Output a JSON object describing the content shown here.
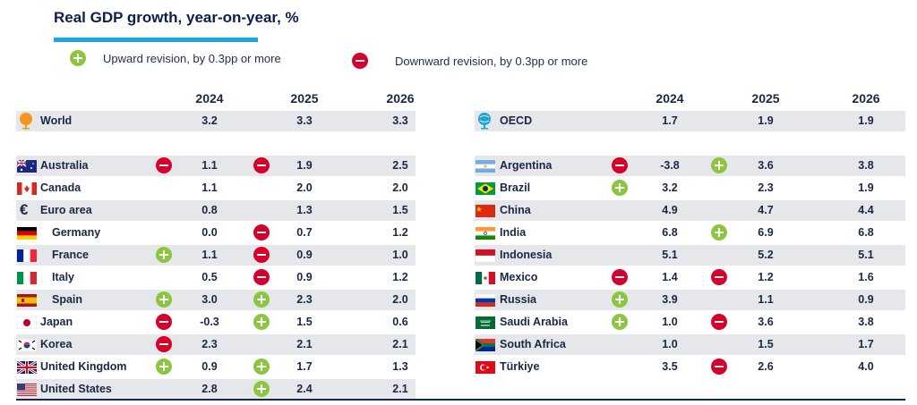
{
  "chart_data": {
    "type": "table",
    "title": "Real GDP growth, year-on-year, %",
    "legend": [
      {
        "key": "up",
        "label": "Upward revision, by 0.3pp or more"
      },
      {
        "key": "down",
        "label": "Downward revision, by 0.3pp or more"
      }
    ],
    "years": [
      "2024",
      "2025",
      "2026"
    ],
    "left": {
      "aggregate": {
        "name": "World",
        "values": [
          "3.2",
          "3.3",
          "3.3"
        ],
        "revisions": [
          null,
          null,
          null
        ]
      },
      "countries": [
        {
          "name": "Australia",
          "values": [
            "1.1",
            "1.9",
            "2.5"
          ],
          "revisions": [
            "down",
            "down",
            null
          ]
        },
        {
          "name": "Canada",
          "values": [
            "1.1",
            "2.0",
            "2.0"
          ],
          "revisions": [
            null,
            null,
            null
          ]
        },
        {
          "name": "Euro area",
          "values": [
            "0.8",
            "1.3",
            "1.5"
          ],
          "revisions": [
            null,
            null,
            null
          ]
        },
        {
          "name": "Germany",
          "values": [
            "0.0",
            "0.7",
            "1.2"
          ],
          "revisions": [
            null,
            "down",
            null
          ]
        },
        {
          "name": "France",
          "values": [
            "1.1",
            "0.9",
            "1.0"
          ],
          "revisions": [
            "up",
            "down",
            null
          ]
        },
        {
          "name": "Italy",
          "values": [
            "0.5",
            "0.9",
            "1.2"
          ],
          "revisions": [
            null,
            "down",
            null
          ]
        },
        {
          "name": "Spain",
          "values": [
            "3.0",
            "2.3",
            "2.0"
          ],
          "revisions": [
            "up",
            "up",
            null
          ]
        },
        {
          "name": "Japan",
          "values": [
            "-0.3",
            "1.5",
            "0.6"
          ],
          "revisions": [
            "down",
            "up",
            null
          ]
        },
        {
          "name": "Korea",
          "values": [
            "2.3",
            "2.1",
            "2.1"
          ],
          "revisions": [
            "down",
            null,
            null
          ]
        },
        {
          "name": "United Kingdom",
          "values": [
            "0.9",
            "1.7",
            "1.3"
          ],
          "revisions": [
            "up",
            "up",
            null
          ]
        },
        {
          "name": "United States",
          "values": [
            "2.8",
            "2.4",
            "2.1"
          ],
          "revisions": [
            null,
            "up",
            null
          ]
        }
      ]
    },
    "right": {
      "aggregate": {
        "name": "OECD",
        "values": [
          "1.7",
          "1.9",
          "1.9"
        ],
        "revisions": [
          null,
          null,
          null
        ]
      },
      "countries": [
        {
          "name": "Argentina",
          "values": [
            "-3.8",
            "3.6",
            "3.8"
          ],
          "revisions": [
            "down",
            "up",
            null
          ]
        },
        {
          "name": "Brazil",
          "values": [
            "3.2",
            "2.3",
            "1.9"
          ],
          "revisions": [
            "up",
            null,
            null
          ]
        },
        {
          "name": "China",
          "values": [
            "4.9",
            "4.7",
            "4.4"
          ],
          "revisions": [
            null,
            null,
            null
          ]
        },
        {
          "name": "India",
          "values": [
            "6.8",
            "6.9",
            "6.8"
          ],
          "revisions": [
            null,
            "up",
            null
          ]
        },
        {
          "name": "Indonesia",
          "values": [
            "5.1",
            "5.2",
            "5.1"
          ],
          "revisions": [
            null,
            null,
            null
          ]
        },
        {
          "name": "Mexico",
          "values": [
            "1.4",
            "1.2",
            "1.6"
          ],
          "revisions": [
            "down",
            "down",
            null
          ]
        },
        {
          "name": "Russia",
          "values": [
            "3.9",
            "1.1",
            "0.9"
          ],
          "revisions": [
            "up",
            null,
            null
          ]
        },
        {
          "name": "Saudi Arabia",
          "values": [
            "1.0",
            "3.6",
            "3.8"
          ],
          "revisions": [
            "up",
            "down",
            null
          ]
        },
        {
          "name": "South Africa",
          "values": [
            "1.0",
            "1.5",
            "1.7"
          ],
          "revisions": [
            null,
            null,
            null
          ]
        },
        {
          "name": "Türkiye",
          "values": [
            "3.5",
            "2.6",
            "4.0"
          ],
          "revisions": [
            null,
            "down",
            null
          ]
        }
      ]
    },
    "colors": {
      "up": "#8cc63f",
      "down": "#d6002b",
      "accent": "#1fa4dc",
      "shade": "#e6e7eb"
    }
  }
}
